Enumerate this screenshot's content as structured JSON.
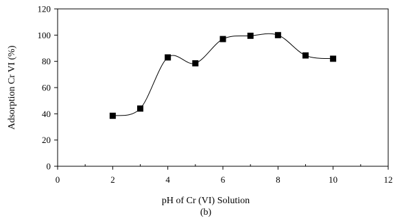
{
  "chart_data": {
    "type": "scatter",
    "xlabel": "pH of Cr (VI) Solution",
    "ylabel": "Adsorption Cr VI (%)",
    "caption": "(b)",
    "xlim": [
      0,
      12
    ],
    "ylim": [
      0,
      120
    ],
    "x_ticks": [
      0,
      2,
      4,
      6,
      8,
      10,
      12
    ],
    "y_ticks": [
      0,
      20,
      40,
      60,
      80,
      100,
      120
    ],
    "x_minor_ticks": [
      1,
      3,
      5,
      7,
      9,
      11
    ],
    "grid": false,
    "legend": "none",
    "smooth_line": true,
    "series": [
      {
        "marker": "square",
        "color": "#000000",
        "x": [
          2,
          3,
          4,
          5,
          6,
          7,
          8,
          9,
          10
        ],
        "y": [
          38.5,
          44,
          83,
          78.5,
          97,
          99.5,
          100,
          84.5,
          82
        ]
      }
    ]
  }
}
